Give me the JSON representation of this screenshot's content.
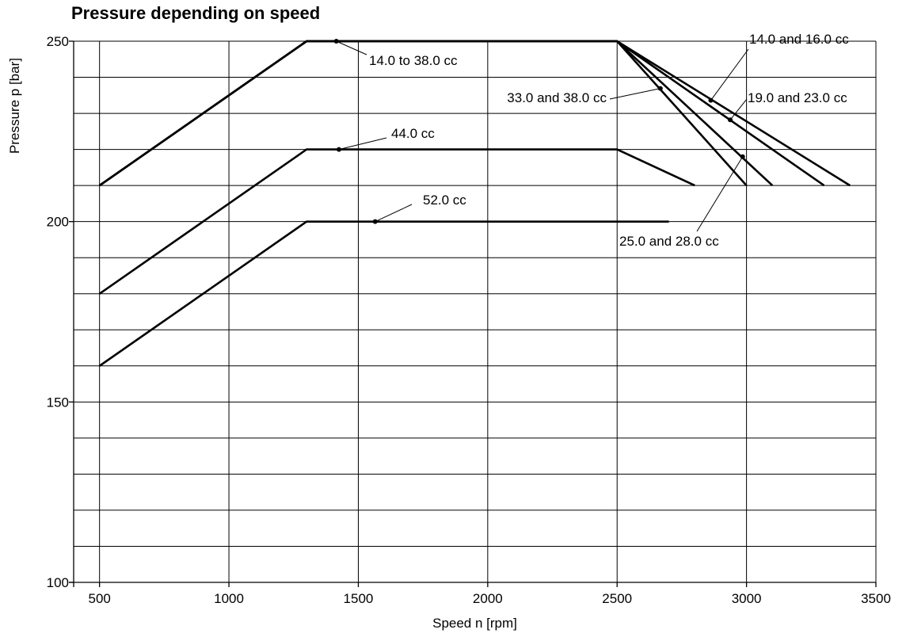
{
  "chart_data": {
    "type": "line",
    "title": "Pressure depending on speed",
    "xlabel": "Speed n [rpm]",
    "ylabel": "Pressure p [bar]",
    "xlim": [
      400,
      3500
    ],
    "ylim": [
      100,
      250
    ],
    "x_ticks": [
      500,
      1000,
      1500,
      2000,
      2500,
      3000,
      3500
    ],
    "y_ticks_labeled": [
      100,
      150,
      200,
      250
    ],
    "x_grid": [
      500,
      1000,
      1500,
      2000,
      2500,
      3000,
      3500
    ],
    "y_grid": [
      110,
      120,
      130,
      140,
      150,
      160,
      170,
      180,
      190,
      200,
      210,
      220,
      230,
      240,
      250
    ],
    "grid": true,
    "series": [
      {
        "name": "14.0 and 16.0 cc",
        "x": [
          500,
          1300,
          2500,
          3400
        ],
        "y": [
          210,
          250,
          250,
          210
        ]
      },
      {
        "name": "19.0 and 23.0 cc",
        "x": [
          500,
          1300,
          2500,
          3300
        ],
        "y": [
          210,
          250,
          250,
          210
        ]
      },
      {
        "name": "25.0 and 28.0 cc",
        "x": [
          500,
          1300,
          2500,
          3100
        ],
        "y": [
          210,
          250,
          250,
          210
        ]
      },
      {
        "name": "33.0 and 38.0 cc",
        "x": [
          500,
          1300,
          2500,
          3000
        ],
        "y": [
          210,
          250,
          250,
          210
        ]
      },
      {
        "name": "44.0 cc",
        "x": [
          500,
          1300,
          2500,
          2800
        ],
        "y": [
          180,
          220,
          220,
          210
        ]
      },
      {
        "name": "52.0 cc",
        "x": [
          500,
          1300,
          2700
        ],
        "y": [
          160,
          200,
          200
        ]
      }
    ],
    "annotations": [
      {
        "text": "14.0 to 38.0 cc",
        "x": 1415,
        "y": 250
      },
      {
        "text": "44.0 cc",
        "x": 1425,
        "y": 220
      },
      {
        "text": "52.0 cc",
        "x": 1565,
        "y": 200
      },
      {
        "text": "14.0 and 16.0 cc",
        "x": 2862,
        "y": 233.6
      },
      {
        "text": "19.0 and 23.0 cc",
        "x": 2937,
        "y": 228.2
      },
      {
        "text": "33.0 and 38.0 cc",
        "x": 2667,
        "y": 236.9
      },
      {
        "text": "25.0 and 28.0 cc",
        "x": 2985,
        "y": 218
      }
    ]
  }
}
